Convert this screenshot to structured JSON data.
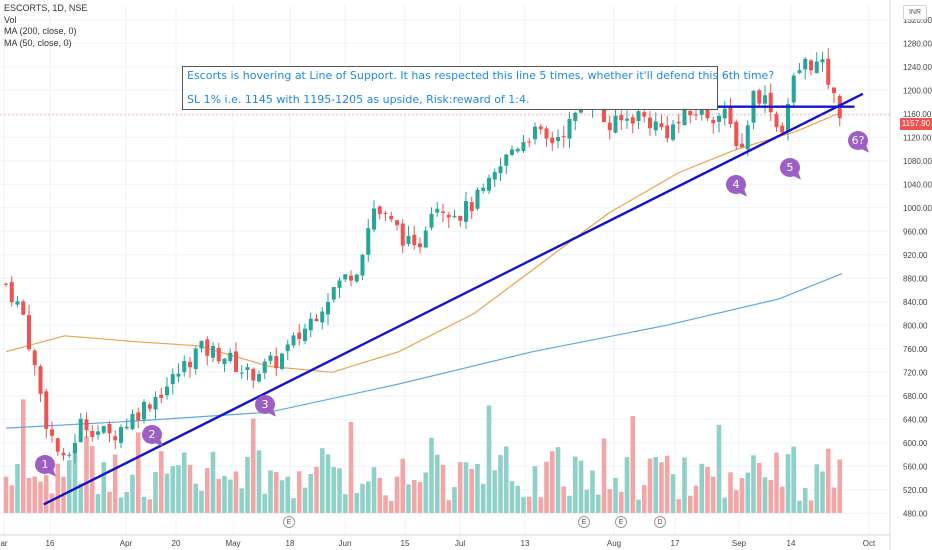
{
  "legend": {
    "symbol_line": "ESCORTS, 1D, NSE",
    "volume_label": "Vol",
    "ma200_label": "MA (200, close, 0)",
    "ma50_label": "MA (50, close, 0)"
  },
  "annotation": {
    "line1": "Escorts is hovering at Line of Support. It has respected this line 5 times, whether it'll defend this 6th time?",
    "line2": "SL 1% i.e. 1145 with 1195-1205 as upside, Risk:reward of 1:4."
  },
  "currency_badge": "INR",
  "last_price": "1157.90",
  "touch_markers": [
    "1",
    "2",
    "3",
    "4",
    "5",
    "6?"
  ],
  "event_markers": [
    "E",
    "E",
    "E",
    "D"
  ],
  "colors": {
    "up": "#26a69a",
    "down": "#ef5350",
    "volume_up": "#8fd0c8",
    "volume_down": "#f3a6a6",
    "ma50": "#f0a04b",
    "ma200": "#5aa9e6",
    "trendline": "#1414c8",
    "marker": "#9c5fc6",
    "annotation_text": "#1e88e5"
  },
  "chart_data": {
    "type": "candlestick",
    "y_axis": {
      "range": [
        450,
        1380
      ],
      "ticks": [
        "1320.00",
        "1280.00",
        "1240.00",
        "1200.00",
        "1160.00",
        "1120.00",
        "1080.00",
        "1040.00",
        "1000.00",
        "960.00",
        "920.00",
        "880.00",
        "840.00",
        "800.00",
        "760.00",
        "720.00",
        "680.00",
        "640.00",
        "600.00",
        "560.00",
        "520.00",
        "480.00"
      ]
    },
    "x_axis": {
      "ticks": [
        "ar",
        "16",
        "Apr",
        "20",
        "May",
        "18",
        "Jun",
        "15",
        "Jul",
        "13",
        "Aug",
        "17",
        "Sep",
        "14",
        "Oct"
      ]
    },
    "price_anchors": [
      {
        "date": "2020-03-09",
        "close": 870
      },
      {
        "date": "2020-03-13",
        "close": 820
      },
      {
        "date": "2020-03-19",
        "close": 625
      },
      {
        "date": "2020-03-23",
        "close": 560
      },
      {
        "date": "2020-03-27",
        "close": 635
      },
      {
        "date": "2020-04-03",
        "close": 610
      },
      {
        "date": "2020-04-09",
        "close": 650
      },
      {
        "date": "2020-04-17",
        "close": 700
      },
      {
        "date": "2020-04-24",
        "close": 760
      },
      {
        "date": "2020-04-30",
        "close": 750
      },
      {
        "date": "2020-05-06",
        "close": 715
      },
      {
        "date": "2020-05-13",
        "close": 740
      },
      {
        "date": "2020-05-18",
        "close": 780
      },
      {
        "date": "2020-05-26",
        "close": 860
      },
      {
        "date": "2020-06-01",
        "close": 900
      },
      {
        "date": "2020-06-05",
        "close": 1000
      },
      {
        "date": "2020-06-11",
        "close": 960
      },
      {
        "date": "2020-06-15",
        "close": 920
      },
      {
        "date": "2020-06-19",
        "close": 1010
      },
      {
        "date": "2020-06-26",
        "close": 990
      },
      {
        "date": "2020-07-02",
        "close": 1030
      },
      {
        "date": "2020-07-08",
        "close": 1100
      },
      {
        "date": "2020-07-13",
        "close": 1130
      },
      {
        "date": "2020-07-17",
        "close": 1110
      },
      {
        "date": "2020-07-23",
        "close": 1150
      },
      {
        "date": "2020-07-27",
        "close": 1195
      },
      {
        "date": "2020-07-31",
        "close": 1135
      },
      {
        "date": "2020-08-07",
        "close": 1160
      },
      {
        "date": "2020-08-14",
        "close": 1130
      },
      {
        "date": "2020-08-21",
        "close": 1165
      },
      {
        "date": "2020-08-28",
        "close": 1155
      },
      {
        "date": "2020-09-01",
        "close": 1100
      },
      {
        "date": "2020-09-04",
        "close": 1200
      },
      {
        "date": "2020-09-08",
        "close": 1175
      },
      {
        "date": "2020-09-10",
        "close": 1120
      },
      {
        "date": "2020-09-14",
        "close": 1230
      },
      {
        "date": "2020-09-17",
        "close": 1250
      },
      {
        "date": "2020-09-21",
        "close": 1235
      },
      {
        "date": "2020-09-23",
        "close": 1185
      },
      {
        "date": "2020-09-25",
        "close": 1158
      }
    ],
    "ma50": [
      {
        "date": "2020-03-09",
        "value": 755
      },
      {
        "date": "2020-03-23",
        "value": 782
      },
      {
        "date": "2020-04-09",
        "value": 772
      },
      {
        "date": "2020-04-24",
        "value": 765
      },
      {
        "date": "2020-05-11",
        "value": 730
      },
      {
        "date": "2020-05-26",
        "value": 720
      },
      {
        "date": "2020-06-11",
        "value": 755
      },
      {
        "date": "2020-06-29",
        "value": 820
      },
      {
        "date": "2020-07-15",
        "value": 905
      },
      {
        "date": "2020-07-31",
        "value": 990
      },
      {
        "date": "2020-08-17",
        "value": 1060
      },
      {
        "date": "2020-08-31",
        "value": 1100
      },
      {
        "date": "2020-09-14",
        "value": 1130
      },
      {
        "date": "2020-09-25",
        "value": 1163
      }
    ],
    "ma200": [
      {
        "date": "2020-03-09",
        "value": 625
      },
      {
        "date": "2020-04-09",
        "value": 637
      },
      {
        "date": "2020-05-11",
        "value": 652
      },
      {
        "date": "2020-06-11",
        "value": 700
      },
      {
        "date": "2020-07-13",
        "value": 755
      },
      {
        "date": "2020-08-14",
        "value": 800
      },
      {
        "date": "2020-09-10",
        "value": 845
      },
      {
        "date": "2020-09-25",
        "value": 888
      }
    ],
    "trendlines": [
      {
        "name": "rising-support",
        "from": {
          "date": "2020-03-18",
          "price": 495
        },
        "to": {
          "date": "2020-09-30",
          "price": 1194
        }
      },
      {
        "name": "horizontal-support",
        "from": {
          "date": "2020-05-01",
          "price": 1172
        },
        "to": {
          "date": "2020-09-28",
          "price": 1172
        }
      }
    ],
    "support_touches": [
      {
        "label": "1",
        "date": "2020-03-23",
        "price": 555
      },
      {
        "label": "2",
        "date": "2020-04-09",
        "price": 590
      },
      {
        "label": "3",
        "date": "2020-05-13",
        "price": 650
      },
      {
        "label": "4",
        "date": "2020-08-31",
        "price": 1090
      },
      {
        "label": "5",
        "date": "2020-09-09",
        "price": 1105
      },
      {
        "label": "6?",
        "date": "2020-09-28",
        "price": 1140
      }
    ]
  }
}
